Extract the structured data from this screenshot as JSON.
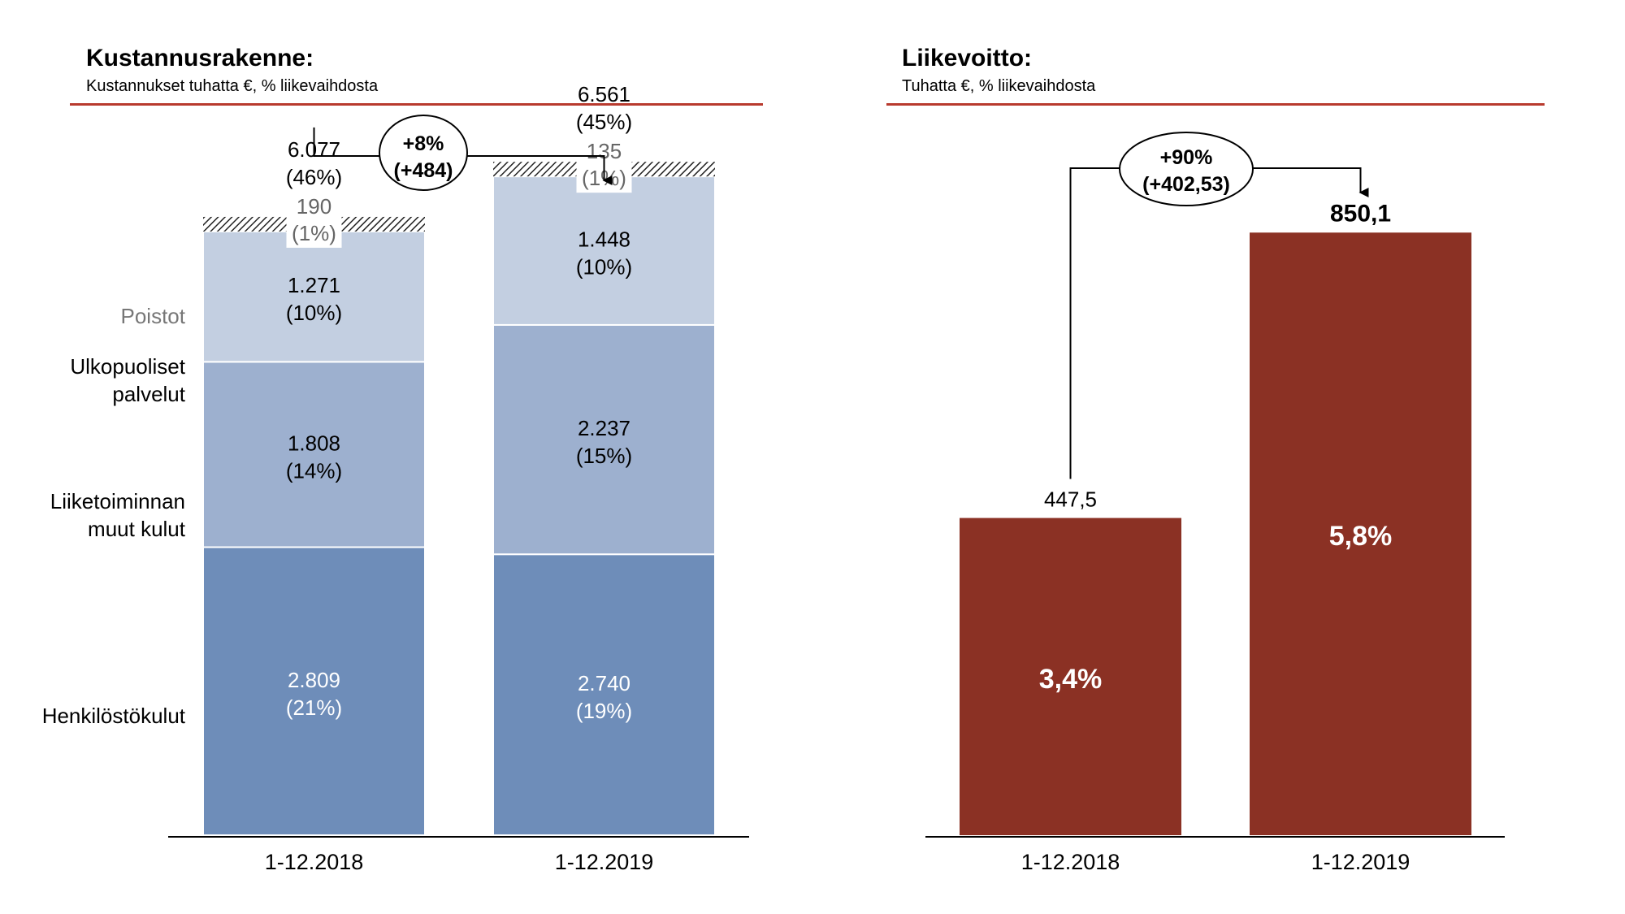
{
  "colors": {
    "rule": "#b83a2e",
    "personnel": "#6e8db9",
    "other_costs": "#9db0cf",
    "external_services": "#c3cfe1",
    "profit_bar": "#8b3124",
    "axis": "#000000"
  },
  "chart_data": [
    {
      "type": "bar",
      "stacked": true,
      "title": "Kustannusrakenne:",
      "subtitle": "Kustannukset tuhatta €, % liikevaihdosta",
      "categories": [
        "1-12.2018",
        "1-12.2019"
      ],
      "series": [
        {
          "name": "Henkilöstökulut",
          "values": [
            2809,
            2740
          ],
          "labels": [
            "2.809",
            "2.740"
          ],
          "pct_labels": [
            "(21%)",
            "(19%)"
          ]
        },
        {
          "name": "Liiketoiminnan muut kulut",
          "values": [
            1808,
            2237
          ],
          "labels": [
            "1.808",
            "2.237"
          ],
          "pct_labels": [
            "(14%)",
            "(15%)"
          ]
        },
        {
          "name": "Ulkopuoliset palvelut",
          "values": [
            1271,
            1448
          ],
          "labels": [
            "1.271",
            "1.448"
          ],
          "pct_labels": [
            "(10%)",
            "(10%)"
          ]
        },
        {
          "name": "Poistot",
          "values": [
            190,
            135
          ],
          "labels": [
            "190",
            "135"
          ],
          "pct_labels": [
            "(1%)",
            "(1%)"
          ]
        }
      ],
      "row_labels": {
        "poistot": "Poistot",
        "ulko_1": "Ulkopuoliset",
        "ulko_2": "palvelut",
        "liike_1": "Liiketoiminnan",
        "liike_2": "muut kulut",
        "henk": "Henkilöstökulut"
      },
      "totals": [
        {
          "value": 6077,
          "label": "6.077",
          "pct": "(46%)"
        },
        {
          "value": 6561,
          "label": "6.561",
          "pct": "(45%)"
        }
      ],
      "change": {
        "pct": "+8%",
        "abs": "(+484)"
      },
      "ylim": [
        0,
        7400
      ]
    },
    {
      "type": "bar",
      "title": "Liikevoitto:",
      "subtitle": "Tuhatta €, % liikevaihdosta",
      "categories": [
        "1-12.2018",
        "1-12.2019"
      ],
      "values": [
        447.5,
        850.1
      ],
      "value_labels": [
        "447,5",
        "850,1"
      ],
      "pct_labels": [
        "3,4%",
        "5,8%"
      ],
      "change": {
        "pct": "+90%",
        "abs": "(+402,53)"
      },
      "ylim": [
        0,
        940
      ]
    }
  ]
}
